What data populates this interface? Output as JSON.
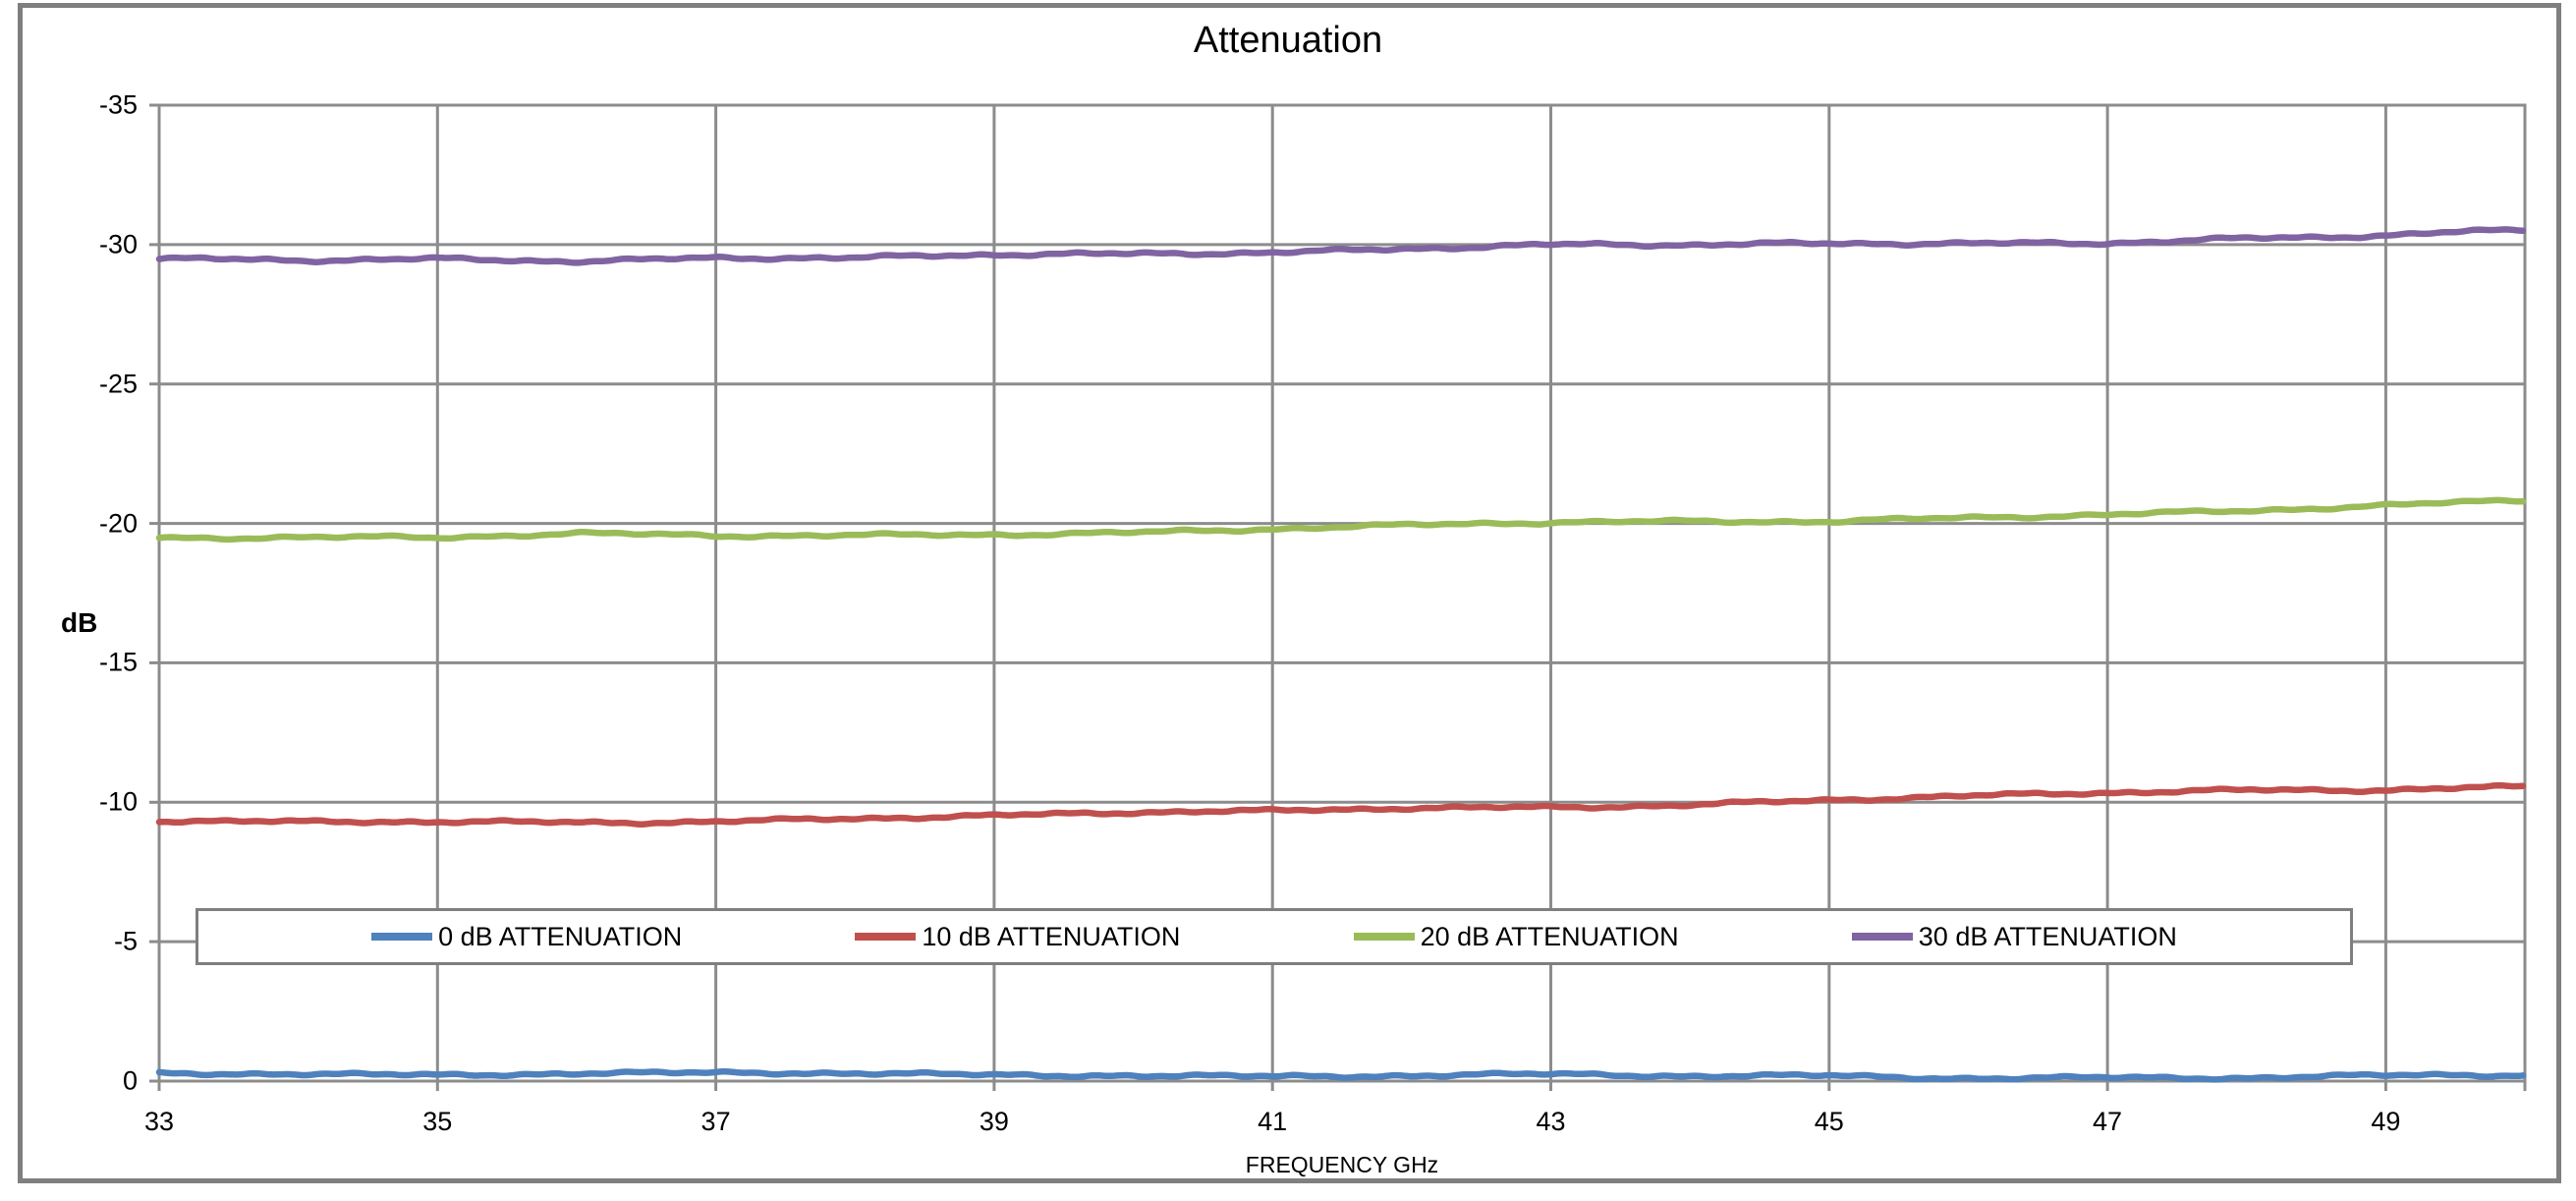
{
  "figure": {
    "frame_border_color": "#7f7f7f",
    "background": "#ffffff",
    "grid_color": "#8c8c8c",
    "axis_color": "#8c8c8c"
  },
  "chart_data": {
    "type": "line",
    "title": "Attenuation",
    "xlabel": "FREQUENCY GHz",
    "ylabel": "dB",
    "xlim": [
      33,
      50
    ],
    "ylim": [
      -35,
      0
    ],
    "y_axis_inverted_negative_up": true,
    "grid": true,
    "legend_position": "inside-bottom-horizontal",
    "xticks": [
      33,
      35,
      37,
      39,
      41,
      43,
      45,
      47,
      49
    ],
    "yticks": [
      -35,
      -30,
      -25,
      -20,
      -15,
      -10,
      -5,
      0
    ],
    "x": [
      33,
      34,
      35,
      36,
      37,
      38,
      39,
      40,
      41,
      42,
      43,
      44,
      45,
      46,
      47,
      48,
      49,
      50
    ],
    "series": [
      {
        "name": "0 dB ATTENUATION",
        "color": "#4f81bd",
        "values": [
          -0.25,
          -0.3,
          -0.25,
          -0.3,
          -0.25,
          -0.25,
          -0.2,
          -0.25,
          -0.2,
          -0.2,
          -0.2,
          -0.15,
          -0.2,
          -0.15,
          -0.15,
          -0.1,
          -0.15,
          -0.2
        ]
      },
      {
        "name": "10 dB ATTENUATION",
        "color": "#c0504d",
        "values": [
          -9.3,
          -9.25,
          -9.3,
          -9.3,
          -9.35,
          -9.45,
          -9.5,
          -9.6,
          -9.65,
          -9.8,
          -9.85,
          -9.95,
          -10.1,
          -10.2,
          -10.3,
          -10.4,
          -10.45,
          -10.6
        ]
      },
      {
        "name": "20 dB ATTENUATION",
        "color": "#9bbb59",
        "values": [
          -19.5,
          -19.5,
          -19.45,
          -19.6,
          -19.55,
          -19.6,
          -19.65,
          -19.7,
          -19.8,
          -19.9,
          -20.0,
          -20.05,
          -20.1,
          -20.25,
          -20.35,
          -20.45,
          -20.6,
          -20.8
        ]
      },
      {
        "name": "30 dB ATTENUATION",
        "color": "#8064a2",
        "values": [
          -29.45,
          -29.4,
          -29.5,
          -29.45,
          -29.55,
          -29.5,
          -29.6,
          -29.65,
          -29.75,
          -29.9,
          -30.0,
          -29.95,
          -30.0,
          -30.05,
          -30.1,
          -30.25,
          -30.3,
          -30.5
        ]
      }
    ]
  }
}
